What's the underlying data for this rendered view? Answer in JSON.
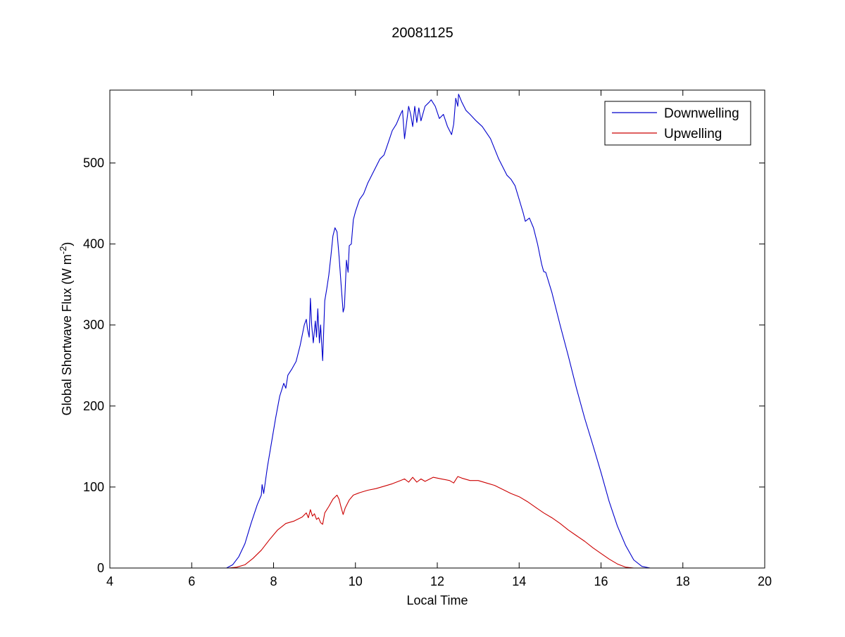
{
  "chart_data": {
    "type": "line",
    "title": "20081125",
    "xlabel": "Local Time",
    "ylabel": {
      "text": "Global Shortwave Flux (W m",
      "superscript": "-2",
      "close": ")"
    },
    "xlim": [
      4,
      20
    ],
    "ylim": [
      0,
      590
    ],
    "xticks": [
      4,
      6,
      8,
      10,
      12,
      14,
      16,
      18,
      20
    ],
    "yticks": [
      0,
      100,
      200,
      300,
      400,
      500
    ],
    "grid": false,
    "legend_position": "top-right",
    "series": [
      {
        "name": "Downwelling",
        "color": "#0000cc",
        "points": [
          [
            6.85,
            0
          ],
          [
            7.0,
            4
          ],
          [
            7.15,
            14
          ],
          [
            7.3,
            30
          ],
          [
            7.45,
            55
          ],
          [
            7.6,
            78
          ],
          [
            7.7,
            90
          ],
          [
            7.72,
            103
          ],
          [
            7.76,
            92
          ],
          [
            7.85,
            125
          ],
          [
            7.95,
            155
          ],
          [
            8.05,
            185
          ],
          [
            8.15,
            212
          ],
          [
            8.25,
            228
          ],
          [
            8.3,
            222
          ],
          [
            8.35,
            238
          ],
          [
            8.45,
            246
          ],
          [
            8.55,
            255
          ],
          [
            8.65,
            275
          ],
          [
            8.75,
            300
          ],
          [
            8.8,
            307
          ],
          [
            8.83,
            295
          ],
          [
            8.87,
            285
          ],
          [
            8.9,
            333
          ],
          [
            8.93,
            300
          ],
          [
            8.97,
            278
          ],
          [
            9.02,
            305
          ],
          [
            9.05,
            285
          ],
          [
            9.08,
            320
          ],
          [
            9.12,
            278
          ],
          [
            9.15,
            300
          ],
          [
            9.2,
            256
          ],
          [
            9.25,
            330
          ],
          [
            9.3,
            345
          ],
          [
            9.35,
            362
          ],
          [
            9.4,
            385
          ],
          [
            9.45,
            410
          ],
          [
            9.5,
            420
          ],
          [
            9.55,
            415
          ],
          [
            9.6,
            385
          ],
          [
            9.65,
            350
          ],
          [
            9.7,
            316
          ],
          [
            9.73,
            322
          ],
          [
            9.78,
            380
          ],
          [
            9.82,
            365
          ],
          [
            9.85,
            398
          ],
          [
            9.9,
            400
          ],
          [
            9.95,
            430
          ],
          [
            10.0,
            440
          ],
          [
            10.1,
            455
          ],
          [
            10.2,
            462
          ],
          [
            10.3,
            475
          ],
          [
            10.4,
            485
          ],
          [
            10.5,
            495
          ],
          [
            10.6,
            505
          ],
          [
            10.7,
            510
          ],
          [
            10.8,
            525
          ],
          [
            10.9,
            540
          ],
          [
            11.0,
            548
          ],
          [
            11.1,
            560
          ],
          [
            11.15,
            565
          ],
          [
            11.2,
            530
          ],
          [
            11.25,
            550
          ],
          [
            11.3,
            570
          ],
          [
            11.35,
            560
          ],
          [
            11.4,
            545
          ],
          [
            11.45,
            570
          ],
          [
            11.5,
            550
          ],
          [
            11.55,
            568
          ],
          [
            11.6,
            552
          ],
          [
            11.7,
            570
          ],
          [
            11.8,
            575
          ],
          [
            11.85,
            578
          ],
          [
            11.95,
            570
          ],
          [
            12.05,
            555
          ],
          [
            12.15,
            560
          ],
          [
            12.25,
            545
          ],
          [
            12.35,
            535
          ],
          [
            12.4,
            548
          ],
          [
            12.45,
            580
          ],
          [
            12.5,
            570
          ],
          [
            12.52,
            585
          ],
          [
            12.6,
            575
          ],
          [
            12.7,
            565
          ],
          [
            12.8,
            560
          ],
          [
            12.95,
            552
          ],
          [
            13.1,
            545
          ],
          [
            13.3,
            530
          ],
          [
            13.5,
            505
          ],
          [
            13.7,
            485
          ],
          [
            13.8,
            480
          ],
          [
            13.9,
            472
          ],
          [
            14.0,
            455
          ],
          [
            14.1,
            438
          ],
          [
            14.15,
            428
          ],
          [
            14.25,
            432
          ],
          [
            14.35,
            420
          ],
          [
            14.45,
            400
          ],
          [
            14.55,
            375
          ],
          [
            14.6,
            366
          ],
          [
            14.65,
            365
          ],
          [
            14.8,
            340
          ],
          [
            15.0,
            300
          ],
          [
            15.2,
            262
          ],
          [
            15.4,
            222
          ],
          [
            15.6,
            185
          ],
          [
            15.8,
            152
          ],
          [
            16.0,
            118
          ],
          [
            16.2,
            82
          ],
          [
            16.4,
            52
          ],
          [
            16.6,
            28
          ],
          [
            16.8,
            10
          ],
          [
            17.0,
            2
          ],
          [
            17.2,
            0
          ]
        ]
      },
      {
        "name": "Upwelling",
        "color": "#cc0000",
        "points": [
          [
            6.9,
            0
          ],
          [
            7.1,
            1
          ],
          [
            7.3,
            4
          ],
          [
            7.5,
            12
          ],
          [
            7.7,
            22
          ],
          [
            7.9,
            35
          ],
          [
            8.1,
            47
          ],
          [
            8.3,
            55
          ],
          [
            8.5,
            58
          ],
          [
            8.7,
            63
          ],
          [
            8.8,
            68
          ],
          [
            8.85,
            62
          ],
          [
            8.9,
            72
          ],
          [
            8.95,
            64
          ],
          [
            9.0,
            67
          ],
          [
            9.05,
            60
          ],
          [
            9.1,
            62
          ],
          [
            9.15,
            56
          ],
          [
            9.2,
            54
          ],
          [
            9.25,
            68
          ],
          [
            9.35,
            76
          ],
          [
            9.45,
            85
          ],
          [
            9.55,
            90
          ],
          [
            9.6,
            85
          ],
          [
            9.65,
            75
          ],
          [
            9.7,
            66
          ],
          [
            9.75,
            74
          ],
          [
            9.85,
            84
          ],
          [
            9.95,
            90
          ],
          [
            10.1,
            93
          ],
          [
            10.3,
            96
          ],
          [
            10.5,
            98
          ],
          [
            10.7,
            101
          ],
          [
            10.9,
            104
          ],
          [
            11.0,
            106
          ],
          [
            11.1,
            108
          ],
          [
            11.2,
            110
          ],
          [
            11.3,
            106
          ],
          [
            11.4,
            112
          ],
          [
            11.5,
            106
          ],
          [
            11.6,
            110
          ],
          [
            11.7,
            107
          ],
          [
            11.9,
            112
          ],
          [
            12.1,
            110
          ],
          [
            12.3,
            108
          ],
          [
            12.4,
            105
          ],
          [
            12.5,
            113
          ],
          [
            12.6,
            111
          ],
          [
            12.8,
            108
          ],
          [
            13.0,
            108
          ],
          [
            13.2,
            105
          ],
          [
            13.4,
            102
          ],
          [
            13.6,
            97
          ],
          [
            13.8,
            92
          ],
          [
            14.0,
            88
          ],
          [
            14.2,
            82
          ],
          [
            14.4,
            75
          ],
          [
            14.6,
            68
          ],
          [
            14.8,
            62
          ],
          [
            15.0,
            55
          ],
          [
            15.2,
            47
          ],
          [
            15.4,
            40
          ],
          [
            15.6,
            33
          ],
          [
            15.8,
            25
          ],
          [
            16.0,
            18
          ],
          [
            16.2,
            11
          ],
          [
            16.4,
            5
          ],
          [
            16.6,
            1
          ],
          [
            16.8,
            0
          ]
        ]
      }
    ]
  }
}
